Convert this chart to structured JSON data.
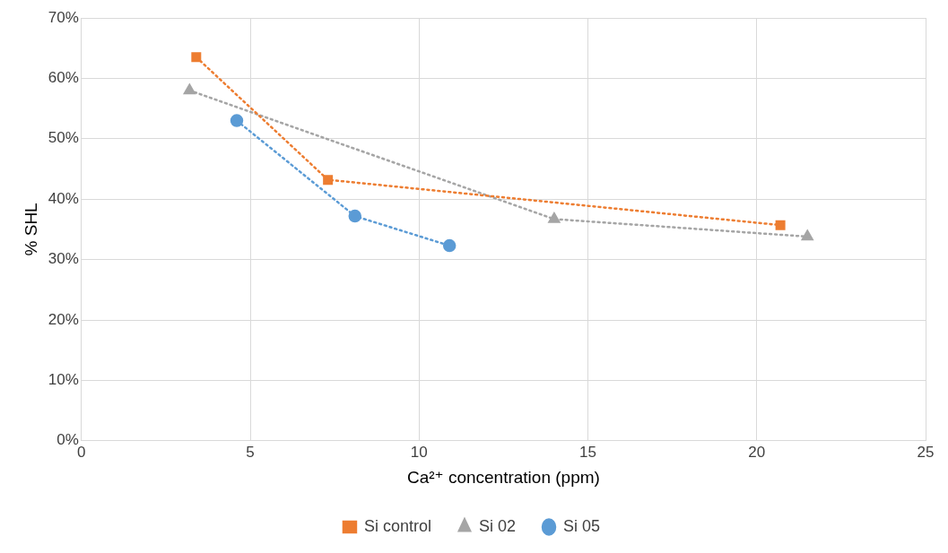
{
  "chart_data": {
    "type": "scatter",
    "xlabel": "Ca²⁺ concentration (ppm)",
    "ylabel": "% SHL",
    "xlim": [
      0,
      25
    ],
    "xticks": [
      0,
      5,
      10,
      15,
      20,
      25
    ],
    "ylim": [
      0,
      70
    ],
    "yticks": [
      {
        "value": 0,
        "label": "0%"
      },
      {
        "value": 10,
        "label": "10%"
      },
      {
        "value": 20,
        "label": "20%"
      },
      {
        "value": 30,
        "label": "30%"
      },
      {
        "value": 40,
        "label": "40%"
      },
      {
        "value": 50,
        "label": "50%"
      },
      {
        "value": 60,
        "label": "60%"
      },
      {
        "value": 70,
        "label": "70%"
      }
    ],
    "grid": true,
    "legend": "bottom",
    "line_style": "dotted",
    "series": [
      {
        "name": "Si control",
        "color": "#ed7d31",
        "type": "line",
        "marker": "square",
        "x": [
          3.4,
          7.3,
          20.7
        ],
        "values": [
          63.5,
          43.2,
          35.7
        ]
      },
      {
        "name": "Si 02",
        "color": "#a5a5a5",
        "type": "line",
        "marker": "triangle",
        "x": [
          3.2,
          14.0,
          21.5
        ],
        "values": [
          58.0,
          36.7,
          33.8
        ]
      },
      {
        "name": "Si 05",
        "color": "#5b9bd5",
        "type": "line",
        "marker": "circle",
        "x": [
          4.6,
          8.1,
          10.9
        ],
        "values": [
          53.0,
          37.2,
          32.3
        ]
      }
    ]
  }
}
